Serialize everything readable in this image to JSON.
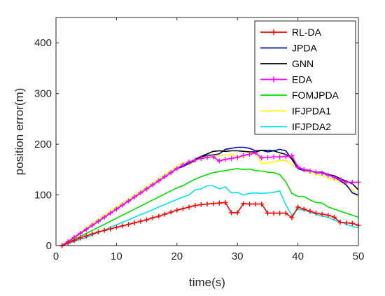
{
  "chart_data": {
    "type": "line",
    "xlabel": "time(s)",
    "ylabel": "position error(m)",
    "xlim": [
      0,
      50
    ],
    "ylim": [
      0,
      450
    ],
    "xticks": [
      0,
      10,
      20,
      30,
      40,
      50
    ],
    "yticks": [
      0,
      100,
      200,
      300,
      400
    ],
    "grid": false,
    "legend_position": "top-right",
    "x": [
      1,
      2,
      3,
      4,
      5,
      6,
      7,
      8,
      9,
      10,
      11,
      12,
      13,
      14,
      15,
      16,
      17,
      18,
      19,
      20,
      21,
      22,
      23,
      24,
      25,
      26,
      27,
      28,
      29,
      30,
      31,
      32,
      33,
      34,
      35,
      36,
      37,
      38,
      39,
      40,
      41,
      42,
      43,
      44,
      45,
      46,
      47,
      48,
      49,
      50
    ],
    "series": [
      {
        "name": "RL-DA",
        "color": "#ff0000",
        "marker": "plus",
        "values": [
          0,
          5,
          10,
          15,
          19,
          23,
          27,
          30,
          33,
          36,
          39,
          42,
          45,
          48,
          51,
          55,
          58,
          62,
          66,
          70,
          73,
          76,
          79,
          81,
          82,
          83,
          84,
          85,
          65,
          65,
          83,
          82,
          82,
          82,
          64,
          64,
          64,
          64,
          55,
          76,
          72,
          68,
          64,
          62,
          60,
          56,
          46,
          45,
          44,
          40
        ]
      },
      {
        "name": "JPDA",
        "color": "#0000cc",
        "marker": "none",
        "values": [
          0,
          8,
          16,
          24,
          32,
          40,
          48,
          56,
          64,
          72,
          80,
          88,
          96,
          104,
          112,
          120,
          128,
          136,
          144,
          152,
          156,
          162,
          168,
          175,
          178,
          179,
          181,
          190,
          192,
          194,
          194,
          192,
          187,
          188,
          185,
          187,
          190,
          187,
          170,
          152,
          148,
          148,
          145,
          145,
          140,
          135,
          128,
          120,
          104,
          100
        ]
      },
      {
        "name": "GNN",
        "color": "#000000",
        "marker": "none",
        "values": [
          0,
          8,
          16,
          24,
          32,
          40,
          48,
          56,
          64,
          72,
          80,
          88,
          96,
          104,
          112,
          120,
          128,
          136,
          144,
          152,
          159,
          164,
          170,
          176,
          181,
          186,
          187,
          186,
          187,
          187,
          186,
          185,
          185,
          188,
          188,
          187,
          183,
          180,
          172,
          155,
          150,
          148,
          144,
          143,
          140,
          138,
          132,
          127,
          122,
          110
        ]
      },
      {
        "name": "EDA",
        "color": "#ff00ff",
        "marker": "plus",
        "values": [
          0,
          8,
          16,
          24,
          32,
          40,
          48,
          56,
          64,
          72,
          80,
          88,
          96,
          104,
          112,
          120,
          128,
          136,
          144,
          152,
          159,
          165,
          169,
          172,
          174,
          175,
          167,
          170,
          172,
          174,
          178,
          180,
          183,
          173,
          174,
          175,
          175,
          176,
          177,
          155,
          150,
          147,
          145,
          143,
          139,
          135,
          130,
          125,
          125,
          125
        ]
      },
      {
        "name": "FOMJPDA",
        "color": "#00e000",
        "marker": "none",
        "values": [
          0,
          6,
          12,
          18,
          24,
          30,
          36,
          42,
          48,
          54,
          60,
          66,
          72,
          78,
          84,
          90,
          96,
          102,
          108,
          114,
          118,
          125,
          131,
          136,
          140,
          144,
          146,
          148,
          150,
          152,
          150,
          151,
          148,
          147,
          145,
          144,
          140,
          126,
          103,
          97,
          97,
          90,
          85,
          84,
          76,
          72,
          68,
          64,
          60,
          56
        ]
      },
      {
        "name": "IFJPDA1",
        "color": "#ffff00",
        "marker": "none",
        "values": [
          0,
          8,
          17,
          26,
          35,
          44,
          52,
          60,
          68,
          76,
          84,
          92,
          100,
          108,
          116,
          124,
          132,
          140,
          148,
          156,
          164,
          160,
          167,
          172,
          176,
          177,
          177,
          178,
          180,
          175,
          174,
          184,
          183,
          162,
          163,
          165,
          168,
          168,
          160,
          152,
          148,
          145,
          140,
          138,
          133,
          130,
          126,
          118,
          110,
          95
        ]
      },
      {
        "name": "IFJPDA2",
        "color": "#00e5ee",
        "marker": "none",
        "values": [
          0,
          4,
          8,
          12,
          16,
          21,
          26,
          31,
          36,
          41,
          46,
          51,
          56,
          61,
          66,
          71,
          76,
          81,
          86,
          91,
          96,
          100,
          110,
          112,
          118,
          118,
          112,
          116,
          104,
          105,
          100,
          103,
          104,
          103,
          104,
          105,
          108,
          80,
          60,
          72,
          70,
          66,
          62,
          58,
          56,
          50,
          47,
          42,
          38,
          35
        ]
      }
    ]
  }
}
